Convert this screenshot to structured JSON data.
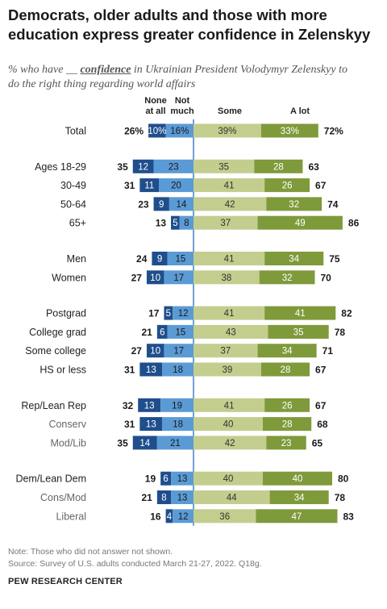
{
  "title_line1": "Democrats, older adults and those with more",
  "title_line2": "education express greater confidence in Zelenskyy",
  "subtitle_pre": "% who have",
  "subtitle_blank": "__",
  "subtitle_em": "confidence",
  "subtitle_line1_rest": "in Ukrainian President Volodymyr Zelenskyy to",
  "subtitle_line2": "do the right thing regarding world affairs",
  "note": "Note: Those who did not answer not shown.",
  "source": "Source: Survey of U.S. adults conducted March 21-27, 2022. Q18g.",
  "brand": "PEW RESEARCH CENTER",
  "colors": {
    "none_at_all": "#1f4e8c",
    "not_much": "#5b9bd5",
    "some": "#c3ce8e",
    "a_lot": "#7f9a3a",
    "divider": "#4a7fc4",
    "label": "#222222",
    "sub_label": "#666666"
  },
  "chart_data": {
    "type": "bar",
    "orientation": "horizontal-diverging",
    "column_headers": {
      "none_at_all": [
        "None",
        "at all"
      ],
      "not_much": [
        "Not",
        "much"
      ],
      "some": "Some",
      "a_lot": "A lot"
    },
    "series": [
      {
        "name": "None at all",
        "key": "none_at_all"
      },
      {
        "name": "Not much",
        "key": "not_much"
      },
      {
        "name": "Some",
        "key": "some"
      },
      {
        "name": "A lot",
        "key": "a_lot"
      }
    ],
    "rows": [
      {
        "label": "Total",
        "none": 10,
        "notmuch": 16,
        "some": 39,
        "alot": 33,
        "net_neg": 26,
        "net_pos": 72,
        "suffix": "%",
        "sub": false,
        "group": 0
      },
      {
        "label": "Ages 18-29",
        "none": 12,
        "notmuch": 23,
        "some": 35,
        "alot": 28,
        "net_neg": 35,
        "net_pos": 63,
        "suffix": "",
        "sub": false,
        "group": 1
      },
      {
        "label": "30-49",
        "none": 11,
        "notmuch": 20,
        "some": 41,
        "alot": 26,
        "net_neg": 31,
        "net_pos": 67,
        "suffix": "",
        "sub": false,
        "group": 1
      },
      {
        "label": "50-64",
        "none": 9,
        "notmuch": 14,
        "some": 42,
        "alot": 32,
        "net_neg": 23,
        "net_pos": 74,
        "suffix": "",
        "sub": false,
        "group": 1
      },
      {
        "label": "65+",
        "none": 5,
        "notmuch": 8,
        "some": 37,
        "alot": 49,
        "net_neg": 13,
        "net_pos": 86,
        "suffix": "",
        "sub": false,
        "group": 1
      },
      {
        "label": "Men",
        "none": 9,
        "notmuch": 15,
        "some": 41,
        "alot": 34,
        "net_neg": 24,
        "net_pos": 75,
        "suffix": "",
        "sub": false,
        "group": 2
      },
      {
        "label": "Women",
        "none": 10,
        "notmuch": 17,
        "some": 38,
        "alot": 32,
        "net_neg": 27,
        "net_pos": 70,
        "suffix": "",
        "sub": false,
        "group": 2
      },
      {
        "label": "Postgrad",
        "none": 5,
        "notmuch": 12,
        "some": 41,
        "alot": 41,
        "net_neg": 17,
        "net_pos": 82,
        "suffix": "",
        "sub": false,
        "group": 3
      },
      {
        "label": "College grad",
        "none": 6,
        "notmuch": 15,
        "some": 43,
        "alot": 35,
        "net_neg": 21,
        "net_pos": 78,
        "suffix": "",
        "sub": false,
        "group": 3
      },
      {
        "label": "Some college",
        "none": 10,
        "notmuch": 17,
        "some": 37,
        "alot": 34,
        "net_neg": 27,
        "net_pos": 71,
        "suffix": "",
        "sub": false,
        "group": 3
      },
      {
        "label": "HS or less",
        "none": 13,
        "notmuch": 18,
        "some": 39,
        "alot": 28,
        "net_neg": 31,
        "net_pos": 67,
        "suffix": "",
        "sub": false,
        "group": 3
      },
      {
        "label": "Rep/Lean Rep",
        "none": 13,
        "notmuch": 19,
        "some": 41,
        "alot": 26,
        "net_neg": 32,
        "net_pos": 67,
        "suffix": "",
        "sub": false,
        "group": 4
      },
      {
        "label": "Conserv",
        "none": 13,
        "notmuch": 18,
        "some": 40,
        "alot": 28,
        "net_neg": 31,
        "net_pos": 68,
        "suffix": "",
        "sub": true,
        "group": 4
      },
      {
        "label": "Mod/Lib",
        "none": 14,
        "notmuch": 21,
        "some": 42,
        "alot": 23,
        "net_neg": 35,
        "net_pos": 65,
        "suffix": "",
        "sub": true,
        "group": 4
      },
      {
        "label": "Dem/Lean Dem",
        "none": 6,
        "notmuch": 13,
        "some": 40,
        "alot": 40,
        "net_neg": 19,
        "net_pos": 80,
        "suffix": "",
        "sub": false,
        "group": 5
      },
      {
        "label": "Cons/Mod",
        "none": 8,
        "notmuch": 13,
        "some": 44,
        "alot": 34,
        "net_neg": 21,
        "net_pos": 78,
        "suffix": "",
        "sub": true,
        "group": 5
      },
      {
        "label": "Liberal",
        "none": 4,
        "notmuch": 12,
        "some": 36,
        "alot": 47,
        "net_neg": 16,
        "net_pos": 83,
        "suffix": "",
        "sub": true,
        "group": 5
      }
    ]
  }
}
